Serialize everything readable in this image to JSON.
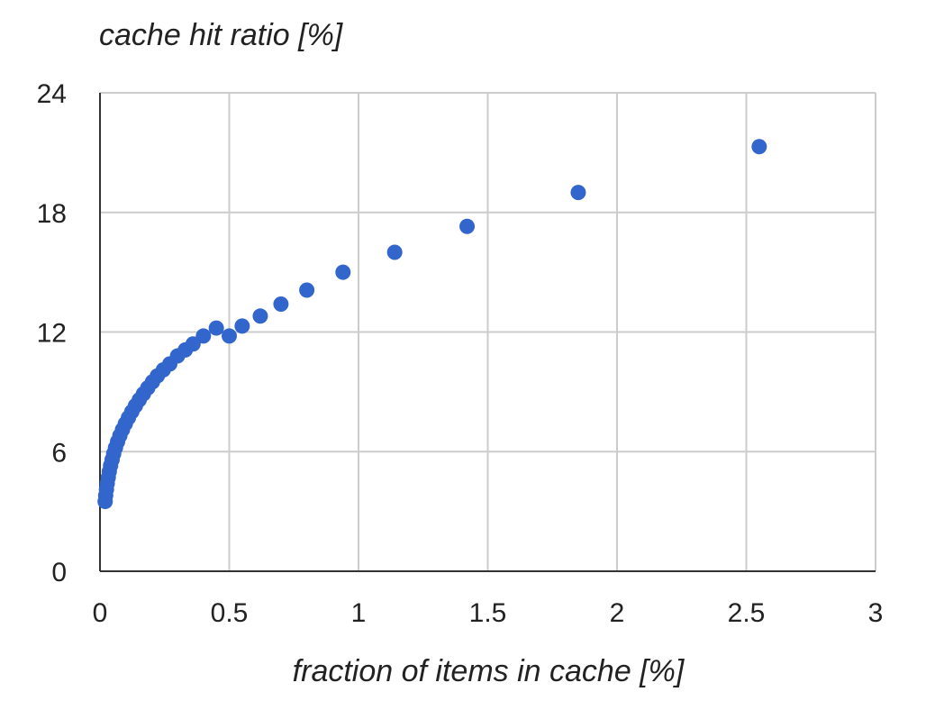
{
  "chart_data": {
    "type": "scatter",
    "title": "",
    "ylabel": "cache hit ratio [%]",
    "xlabel": "fraction of items in cache [%]",
    "xlim": [
      0,
      3
    ],
    "ylim": [
      0,
      24
    ],
    "xticks": [
      "0",
      "0.5",
      "1",
      "1.5",
      "2",
      "2.5",
      "3"
    ],
    "yticks": [
      "0",
      "6",
      "12",
      "18",
      "24"
    ],
    "grid": true,
    "legend": "none",
    "marker_color": "#3366cc",
    "series": [
      {
        "points": [
          [
            0.02,
            3.5
          ],
          [
            0.022,
            3.8
          ],
          [
            0.025,
            4.1
          ],
          [
            0.028,
            4.4
          ],
          [
            0.032,
            4.7
          ],
          [
            0.036,
            5.0
          ],
          [
            0.041,
            5.3
          ],
          [
            0.047,
            5.6
          ],
          [
            0.053,
            5.9
          ],
          [
            0.06,
            6.2
          ],
          [
            0.068,
            6.5
          ],
          [
            0.077,
            6.8
          ],
          [
            0.087,
            7.1
          ],
          [
            0.098,
            7.4
          ],
          [
            0.11,
            7.7
          ],
          [
            0.123,
            8.0
          ],
          [
            0.137,
            8.3
          ],
          [
            0.152,
            8.6
          ],
          [
            0.168,
            8.9
          ],
          [
            0.185,
            9.2
          ],
          [
            0.203,
            9.5
          ],
          [
            0.222,
            9.8
          ],
          [
            0.245,
            10.1
          ],
          [
            0.27,
            10.4
          ],
          [
            0.3,
            10.8
          ],
          [
            0.33,
            11.1
          ],
          [
            0.36,
            11.4
          ],
          [
            0.4,
            11.8
          ],
          [
            0.45,
            12.2
          ],
          [
            0.5,
            11.8
          ],
          [
            0.55,
            12.3
          ],
          [
            0.62,
            12.8
          ],
          [
            0.7,
            13.4
          ],
          [
            0.8,
            14.1
          ],
          [
            0.94,
            15.0
          ],
          [
            1.14,
            16.0
          ],
          [
            1.42,
            17.3
          ],
          [
            1.85,
            19.0
          ],
          [
            2.55,
            21.3
          ]
        ]
      }
    ]
  }
}
